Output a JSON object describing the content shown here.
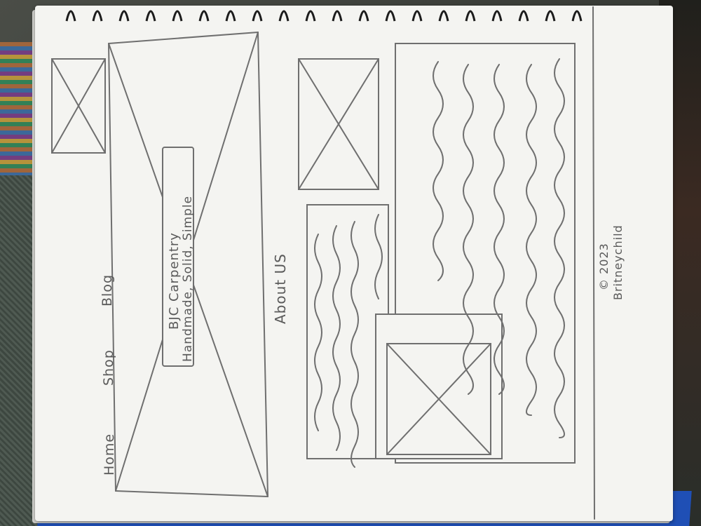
{
  "nav": {
    "items": [
      {
        "label": "Home"
      },
      {
        "label": "Shop"
      },
      {
        "label": "Blog"
      }
    ]
  },
  "hero": {
    "title": "BJC Carpentry",
    "tagline": "Handmade, Solid, Simple"
  },
  "about": {
    "heading": "About US"
  },
  "footer": {
    "copyright": "© 2023",
    "author": "Britneychild"
  },
  "colors": {
    "pencil": "#6f6f6f",
    "paper": "#f4f4f1",
    "cover": "#1f4fb5"
  }
}
